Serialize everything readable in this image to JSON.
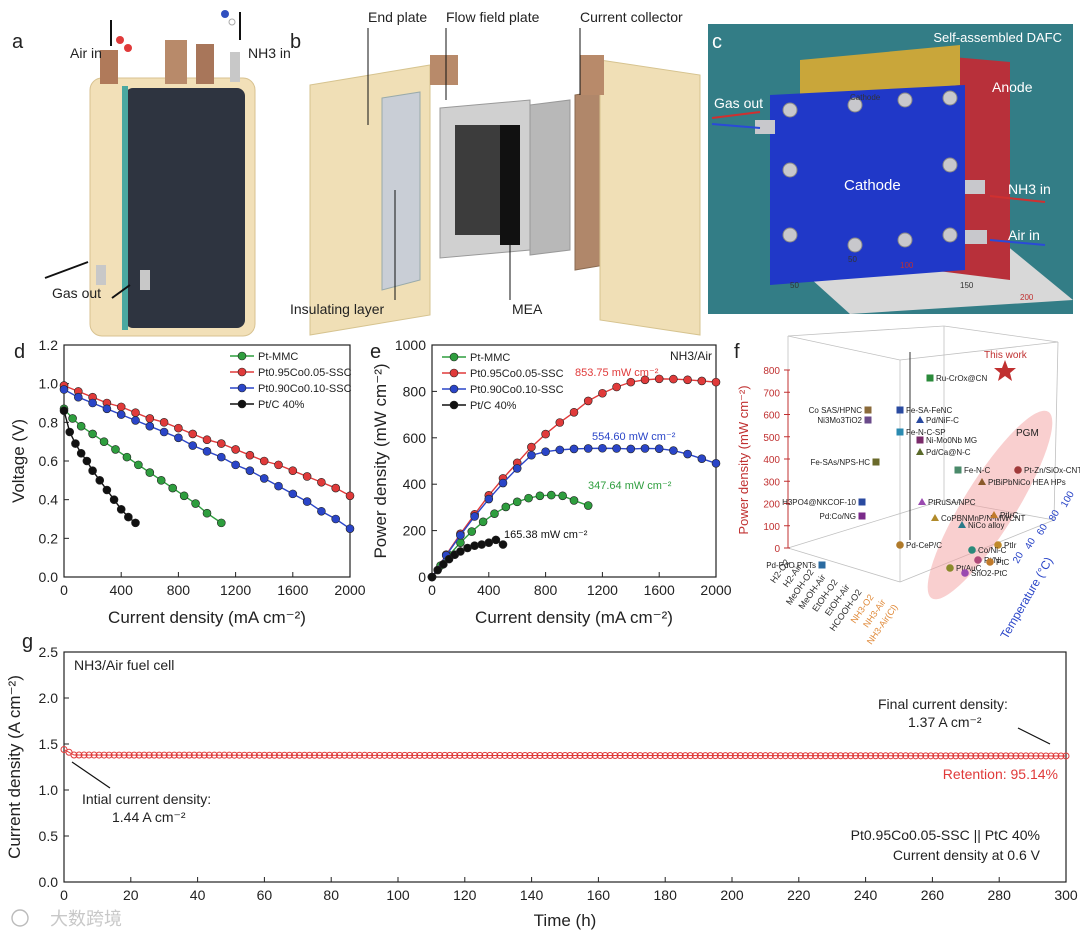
{
  "panels": {
    "a": {
      "letter": "a",
      "labels": {
        "air_in": "Air in",
        "nh3_in": "NH3 in",
        "gas_out": "Gas out"
      }
    },
    "b": {
      "letter": "b",
      "labels": {
        "end_plate": "End plate",
        "flow_field_plate": "Flow field plate",
        "current_collector": "Current collector",
        "insulating_layer": "Insulating layer",
        "mea": "MEA"
      }
    },
    "c": {
      "letter": "c",
      "labels": {
        "title": "Self-assembled DAFC",
        "anode": "Anode",
        "gas_out": "Gas out",
        "cathode": "Cathode",
        "nh3_in": "NH3 in",
        "air_in": "Air in",
        "ruler_50": "50",
        "ruler_100": "100",
        "ruler_150": "150",
        "ruler_200": "200",
        "ruler_v50": "50",
        "plate_text": "Cathode"
      }
    },
    "f": {
      "letter": "f",
      "zlabel": "Power density (mW cm⁻²)",
      "temp_label": "Temperature (°C)",
      "z_ticks": [
        "0",
        "100",
        "200",
        "300",
        "400",
        "500",
        "600",
        "700",
        "800"
      ],
      "temp_ticks": [
        "20",
        "40",
        "60",
        "80",
        "100"
      ],
      "fuels": [
        "H2-O2",
        "H2-Air",
        "MeOH-O2",
        "MeOH-Air",
        "EtOH-O2",
        "EtOH-Air",
        "HCOOH-O2",
        "NH3-O2",
        "NH3-Air",
        "NH3-Air(Cl)"
      ],
      "this_work": "This work",
      "pgm": "PGM",
      "points": [
        {
          "label": "Ru-CrOx@CN",
          "color": "#2a8a3a",
          "shape": "square"
        },
        {
          "label": "Co SAS/HPNC",
          "color": "#8a6a3a",
          "shape": "square"
        },
        {
          "label": "Ni3Mo3TiO2",
          "color": "#6a4a8a",
          "shape": "square"
        },
        {
          "label": "Fe-SA-FeNC",
          "color": "#2a4aa0",
          "shape": "square"
        },
        {
          "label": "Pd/NiF-C",
          "color": "#2a4aa0",
          "shape": "triangle"
        },
        {
          "label": "Fe-N-C-SP",
          "color": "#2a8ab0",
          "shape": "square"
        },
        {
          "label": "Ni-Mo0Nb MG",
          "color": "#7a2a6a",
          "shape": "square"
        },
        {
          "label": "Pd/Ca@N-C",
          "color": "#5a6a2a",
          "shape": "triangle"
        },
        {
          "label": "Fe-SAs/NPS-HC",
          "color": "#6a6a2a",
          "shape": "square"
        },
        {
          "label": "Pt-Zn/SiOx-CNTCOOH",
          "color": "#a03a3a",
          "shape": "circle"
        },
        {
          "label": "Fe-N-C",
          "color": "#4a8a6a",
          "shape": "square"
        },
        {
          "label": "PtBiPbNiCo HEA HPs",
          "color": "#8a5a2a",
          "shape": "triangle"
        },
        {
          "label": "PtRuSA/NPC",
          "color": "#9a4ab0",
          "shape": "triangle"
        },
        {
          "label": "H3PO4@NKCOF-10",
          "color": "#2a4aa0",
          "shape": "square"
        },
        {
          "label": "CoPBNMnP/N-MWCNT",
          "color": "#b08a2a",
          "shape": "triangle"
        },
        {
          "label": "PtIrC",
          "color": "#c07a2a",
          "shape": "triangle"
        },
        {
          "label": "Pd:Co/NG",
          "color": "#7a2a8a",
          "shape": "square"
        },
        {
          "label": "NiCo alloy",
          "color": "#2a7a8a",
          "shape": "triangle"
        },
        {
          "label": "Pd-CeP/C",
          "color": "#b07a2a",
          "shape": "circle"
        },
        {
          "label": "PtIr",
          "color": "#c08a2a",
          "shape": "circle"
        },
        {
          "label": "Co/Ni-C",
          "color": "#2a8a7a",
          "shape": "circle"
        },
        {
          "label": "Pd-PdO PNTs",
          "color": "#2a6aa0",
          "shape": "square"
        },
        {
          "label": "Pt/Ni",
          "color": "#b04a7a",
          "shape": "circle"
        },
        {
          "label": "Pt/AuC",
          "color": "#8a8a2a",
          "shape": "circle"
        },
        {
          "label": "SnO2-PtC",
          "color": "#9a4ab0",
          "shape": "circle"
        },
        {
          "label": "PtC",
          "color": "#c07a2a",
          "shape": "circle"
        }
      ]
    }
  },
  "chart_data": [
    {
      "panel": "d",
      "type": "line",
      "xlabel": "Current density (mA cm⁻²)",
      "ylabel": "Voltage (V)",
      "xlim": [
        0,
        2000
      ],
      "ylim": [
        0,
        1.2
      ],
      "xticks": [
        "0",
        "400",
        "800",
        "1200",
        "1600",
        "2000"
      ],
      "yticks": [
        "0.0",
        "0.2",
        "0.4",
        "0.6",
        "0.8",
        "1.0",
        "1.2"
      ],
      "legend_position": "top-right",
      "series": [
        {
          "name": "Pt-MMC",
          "color": "#2e9e3e",
          "x": [
            0,
            60,
            120,
            200,
            280,
            360,
            440,
            520,
            600,
            680,
            760,
            840,
            920,
            1000,
            1100
          ],
          "y": [
            0.87,
            0.82,
            0.78,
            0.74,
            0.7,
            0.66,
            0.62,
            0.58,
            0.54,
            0.5,
            0.46,
            0.42,
            0.38,
            0.33,
            0.28
          ]
        },
        {
          "name": "Pt0.95Co0.05-SSC",
          "color": "#e03a3a",
          "x": [
            0,
            100,
            200,
            300,
            400,
            500,
            600,
            700,
            800,
            900,
            1000,
            1100,
            1200,
            1300,
            1400,
            1500,
            1600,
            1700,
            1800,
            1900,
            2000
          ],
          "y": [
            0.99,
            0.96,
            0.93,
            0.9,
            0.88,
            0.85,
            0.82,
            0.8,
            0.77,
            0.74,
            0.71,
            0.69,
            0.66,
            0.63,
            0.6,
            0.58,
            0.55,
            0.52,
            0.49,
            0.46,
            0.42
          ]
        },
        {
          "name": "Pt0.90Co0.10-SSC",
          "color": "#2a45c8",
          "x": [
            0,
            100,
            200,
            300,
            400,
            500,
            600,
            700,
            800,
            900,
            1000,
            1100,
            1200,
            1300,
            1400,
            1500,
            1600,
            1700,
            1800,
            1900,
            2000
          ],
          "y": [
            0.97,
            0.93,
            0.9,
            0.87,
            0.84,
            0.81,
            0.78,
            0.75,
            0.72,
            0.68,
            0.65,
            0.62,
            0.58,
            0.55,
            0.51,
            0.47,
            0.43,
            0.39,
            0.34,
            0.3,
            0.25
          ]
        },
        {
          "name": "Pt/C 40%",
          "color": "#111111",
          "x": [
            0,
            40,
            80,
            120,
            160,
            200,
            250,
            300,
            350,
            400,
            450,
            500
          ],
          "y": [
            0.86,
            0.75,
            0.69,
            0.64,
            0.6,
            0.55,
            0.5,
            0.45,
            0.4,
            0.35,
            0.31,
            0.28
          ]
        }
      ]
    },
    {
      "panel": "e",
      "type": "line",
      "xlabel": "Current density (mA cm⁻²)",
      "ylabel": "Power density (mW cm⁻²)",
      "xlim": [
        0,
        2000
      ],
      "ylim": [
        0,
        1000
      ],
      "xticks": [
        "0",
        "400",
        "800",
        "1200",
        "1600",
        "2000"
      ],
      "yticks": [
        "0",
        "200",
        "400",
        "600",
        "800",
        "1000"
      ],
      "corner_text": "NH3/Air",
      "legend_position": "top-left",
      "annotations": [
        {
          "text": "853.75 mW cm⁻²",
          "color": "#e03a3a"
        },
        {
          "text": "554.60 mW cm⁻²",
          "color": "#2a45c8"
        },
        {
          "text": "347.64 mW cm⁻²",
          "color": "#2e9e3e"
        },
        {
          "text": "165.38 mW cm⁻²",
          "color": "#111111"
        }
      ],
      "series": [
        {
          "name": "Pt-MMC",
          "color": "#2e9e3e",
          "x": [
            0,
            60,
            120,
            200,
            280,
            360,
            440,
            520,
            600,
            680,
            760,
            840,
            920,
            1000,
            1100
          ],
          "y": [
            0,
            49,
            94,
            148,
            196,
            238,
            273,
            302,
            324,
            340,
            350,
            353,
            350,
            330,
            308
          ]
        },
        {
          "name": "Pt0.95Co0.05-SSC",
          "color": "#e03a3a",
          "x": [
            0,
            100,
            200,
            300,
            400,
            500,
            600,
            700,
            800,
            900,
            1000,
            1100,
            1200,
            1300,
            1400,
            1500,
            1600,
            1700,
            1800,
            1900,
            2000
          ],
          "y": [
            0,
            96,
            186,
            270,
            352,
            425,
            492,
            560,
            616,
            666,
            710,
            759,
            792,
            819,
            840,
            850,
            854,
            853,
            850,
            845,
            840
          ]
        },
        {
          "name": "Pt0.90Co0.10-SSC",
          "color": "#2a45c8",
          "x": [
            0,
            100,
            200,
            300,
            400,
            500,
            600,
            700,
            800,
            900,
            1000,
            1100,
            1200,
            1300,
            1400,
            1500,
            1600,
            1700,
            1800,
            1900,
            2000
          ],
          "y": [
            0,
            93,
            180,
            261,
            336,
            405,
            468,
            525,
            540,
            548,
            552,
            554,
            555,
            554,
            552,
            554,
            553,
            545,
            530,
            510,
            490
          ]
        },
        {
          "name": "Pt/C 40%",
          "color": "#111111",
          "x": [
            0,
            40,
            80,
            120,
            160,
            200,
            250,
            300,
            350,
            400,
            450,
            500
          ],
          "y": [
            0,
            30,
            55,
            77,
            96,
            110,
            125,
            135,
            140,
            148,
            160,
            140
          ]
        }
      ]
    },
    {
      "panel": "g",
      "type": "line",
      "xlabel": "Time (h)",
      "ylabel": "Current density (A cm⁻²)",
      "xlim": [
        0,
        300
      ],
      "ylim": [
        0,
        2.5
      ],
      "xticks": [
        "0",
        "20",
        "40",
        "60",
        "80",
        "100",
        "120",
        "140",
        "160",
        "180",
        "200",
        "220",
        "240",
        "260",
        "280",
        "300"
      ],
      "yticks": [
        "0.0",
        "0.5",
        "1.0",
        "1.5",
        "2.0",
        "2.5"
      ],
      "corner_text": "NH3/Air fuel cell",
      "initial_label_line1": "Intial current density:",
      "initial_label_line2": "1.44 A cm⁻²",
      "final_label_line1": "Final current density:",
      "final_label_line2": "1.37 A cm⁻²",
      "retention": "Retention: 95.14%",
      "condition_line1": "Pt0.95Co0.05-SSC || PtC 40%",
      "condition_line2": "Current density at 0.6 V",
      "series": [
        {
          "name": "Pt0.95Co0.05-SSC",
          "color": "#e03a3a",
          "start": 1.44,
          "steady": 1.38,
          "end": 1.37
        }
      ]
    }
  ],
  "watermark": "大数跨境"
}
